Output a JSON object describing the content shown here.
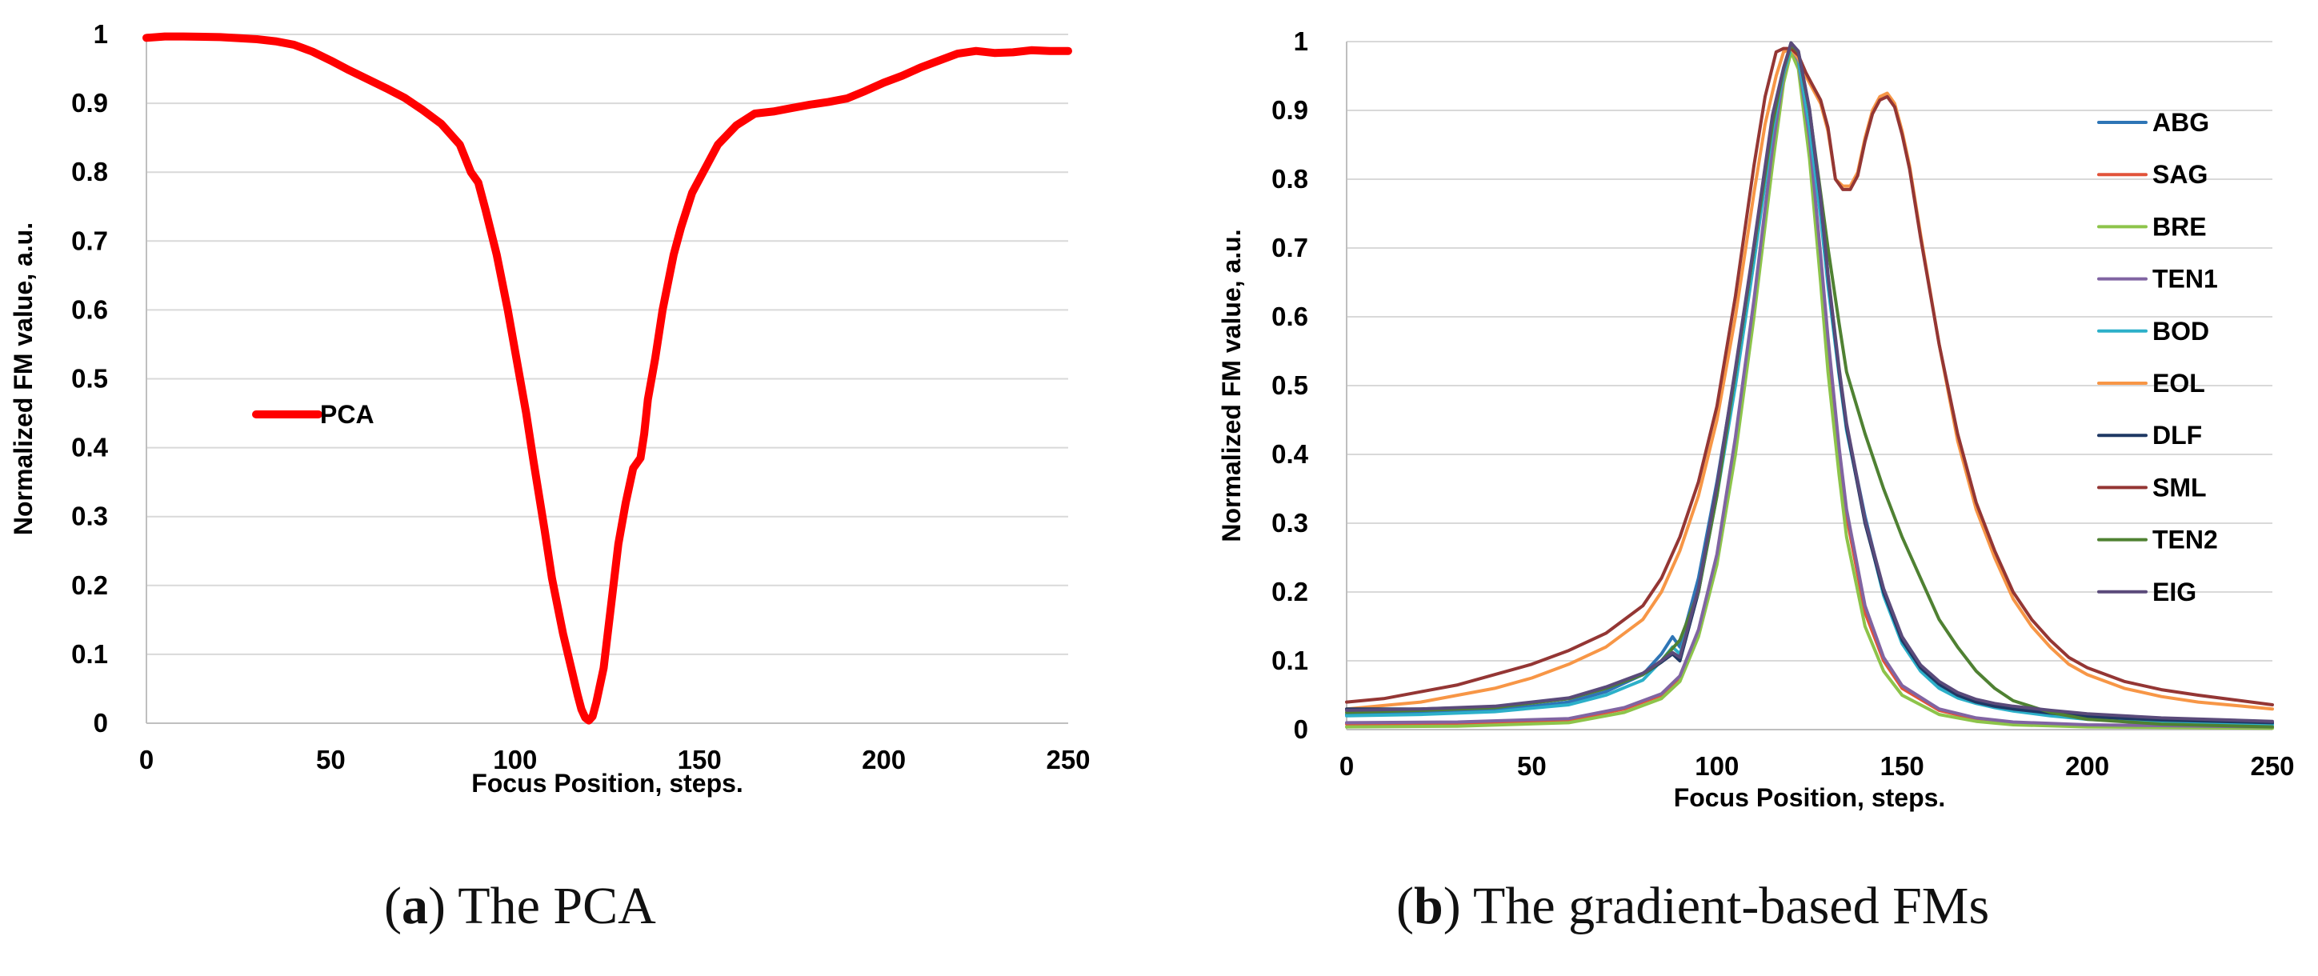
{
  "captions": [
    {
      "open": "(",
      "letter": "a",
      "close": ")",
      "text": "The PCA"
    },
    {
      "open": "(",
      "letter": "b",
      "close": ")",
      "text": "The gradient-based FMs"
    }
  ],
  "chart_data": [
    {
      "type": "line",
      "title": "",
      "xlabel": "Focus Position, steps.",
      "ylabel": "Normalized FM value, a.u.",
      "xlim": [
        0,
        250
      ],
      "ylim": [
        0,
        1
      ],
      "xticks": [
        0,
        50,
        100,
        150,
        200,
        250
      ],
      "yticks": [
        0,
        0.1,
        0.2,
        0.3,
        0.4,
        0.5,
        0.6,
        0.7,
        0.8,
        0.9,
        1
      ],
      "ytick_labels": [
        "0",
        "0.1",
        "0.2",
        "0.3",
        "0.4",
        "0.5",
        "0.6",
        "0.7",
        "0.8",
        "0.9",
        "1"
      ],
      "grid": "horizontal",
      "legend": "center-left",
      "series": [
        {
          "name": "PCA",
          "color": "#ff0000",
          "x": [
            0,
            5,
            10,
            20,
            30,
            35,
            40,
            45,
            50,
            55,
            60,
            65,
            70,
            75,
            80,
            85,
            88,
            90,
            92,
            95,
            98,
            100,
            103,
            105,
            108,
            110,
            113,
            115,
            117,
            118,
            119,
            120,
            121,
            122,
            124,
            126,
            128,
            130,
            132,
            134,
            135,
            136,
            138,
            140,
            143,
            145,
            148,
            150,
            155,
            160,
            165,
            170,
            175,
            180,
            185,
            190,
            195,
            200,
            205,
            210,
            215,
            220,
            225,
            230,
            235,
            240,
            245,
            250
          ],
          "y": [
            0.995,
            0.997,
            0.997,
            0.996,
            0.993,
            0.99,
            0.985,
            0.975,
            0.962,
            0.948,
            0.935,
            0.922,
            0.908,
            0.89,
            0.87,
            0.84,
            0.8,
            0.785,
            0.745,
            0.68,
            0.6,
            0.54,
            0.45,
            0.38,
            0.28,
            0.21,
            0.13,
            0.085,
            0.04,
            0.02,
            0.008,
            0.004,
            0.01,
            0.03,
            0.08,
            0.17,
            0.26,
            0.32,
            0.37,
            0.385,
            0.42,
            0.47,
            0.53,
            0.6,
            0.68,
            0.72,
            0.77,
            0.79,
            0.84,
            0.868,
            0.885,
            0.888,
            0.893,
            0.898,
            0.902,
            0.907,
            0.918,
            0.93,
            0.94,
            0.952,
            0.962,
            0.972,
            0.976,
            0.973,
            0.974,
            0.977,
            0.976,
            0.976
          ]
        }
      ]
    },
    {
      "type": "line",
      "title": "",
      "xlabel": "Focus Position, steps.",
      "ylabel": "Normalized FM value, a.u.",
      "xlim": [
        0,
        250
      ],
      "ylim": [
        0,
        1
      ],
      "xticks": [
        0,
        50,
        100,
        150,
        200,
        250
      ],
      "yticks": [
        0,
        0.1,
        0.2,
        0.3,
        0.4,
        0.5,
        0.6,
        0.7,
        0.8,
        0.9,
        1
      ],
      "ytick_labels": [
        "0",
        "0.1",
        "0.2",
        "0.3",
        "0.4",
        "0.5",
        "0.6",
        "0.7",
        "0.8",
        "0.9",
        "1"
      ],
      "grid": "horizontal",
      "legend": "right",
      "series": [
        {
          "name": "ABG",
          "color": "#2e75b6",
          "x": [
            0,
            20,
            40,
            60,
            70,
            80,
            85,
            88,
            90,
            95,
            100,
            105,
            110,
            115,
            118,
            120,
            122,
            125,
            128,
            130,
            133,
            135,
            140,
            145,
            150,
            155,
            160,
            165,
            170,
            175,
            180,
            190,
            200,
            220,
            250
          ],
          "y": [
            0.022,
            0.024,
            0.028,
            0.04,
            0.055,
            0.08,
            0.11,
            0.135,
            0.12,
            0.22,
            0.36,
            0.52,
            0.7,
            0.88,
            0.96,
            0.995,
            0.98,
            0.88,
            0.75,
            0.65,
            0.52,
            0.44,
            0.31,
            0.2,
            0.13,
            0.09,
            0.065,
            0.05,
            0.042,
            0.036,
            0.03,
            0.022,
            0.017,
            0.012,
            0.008
          ]
        },
        {
          "name": "SAG",
          "color": "#e2533a",
          "x": [
            0,
            30,
            60,
            75,
            85,
            90,
            95,
            100,
            105,
            110,
            115,
            118,
            120,
            122,
            125,
            128,
            130,
            133,
            135,
            140,
            145,
            150,
            160,
            170,
            180,
            200,
            250
          ],
          "y": [
            0.008,
            0.009,
            0.014,
            0.03,
            0.05,
            0.075,
            0.14,
            0.25,
            0.42,
            0.62,
            0.84,
            0.95,
            0.99,
            0.97,
            0.85,
            0.68,
            0.56,
            0.4,
            0.31,
            0.17,
            0.1,
            0.06,
            0.028,
            0.015,
            0.01,
            0.006,
            0.004
          ]
        },
        {
          "name": "BRE",
          "color": "#8dc44a",
          "x": [
            0,
            30,
            60,
            75,
            85,
            90,
            95,
            100,
            105,
            110,
            115,
            118,
            120,
            122,
            125,
            128,
            130,
            133,
            135,
            140,
            145,
            150,
            160,
            170,
            180,
            200,
            250
          ],
          "y": [
            0.004,
            0.005,
            0.01,
            0.025,
            0.045,
            0.07,
            0.135,
            0.24,
            0.4,
            0.6,
            0.82,
            0.94,
            0.985,
            0.96,
            0.83,
            0.65,
            0.52,
            0.37,
            0.28,
            0.15,
            0.085,
            0.05,
            0.022,
            0.012,
            0.007,
            0.004,
            0.002
          ]
        },
        {
          "name": "TEN1",
          "color": "#8064a2",
          "x": [
            0,
            30,
            60,
            75,
            85,
            90,
            95,
            100,
            105,
            110,
            115,
            118,
            120,
            122,
            125,
            128,
            130,
            133,
            135,
            140,
            145,
            150,
            160,
            170,
            180,
            200,
            250
          ],
          "y": [
            0.01,
            0.011,
            0.016,
            0.032,
            0.052,
            0.078,
            0.145,
            0.255,
            0.425,
            0.625,
            0.845,
            0.952,
            0.992,
            0.972,
            0.86,
            0.69,
            0.57,
            0.41,
            0.32,
            0.18,
            0.105,
            0.064,
            0.03,
            0.017,
            0.011,
            0.007,
            0.004
          ]
        },
        {
          "name": "BOD",
          "color": "#2cb0c9",
          "x": [
            0,
            20,
            40,
            60,
            70,
            80,
            85,
            88,
            90,
            95,
            100,
            105,
            110,
            115,
            118,
            120,
            122,
            125,
            128,
            130,
            133,
            135,
            140,
            145,
            150,
            155,
            160,
            165,
            170,
            175,
            180,
            190,
            200,
            220,
            250
          ],
          "y": [
            0.02,
            0.022,
            0.026,
            0.036,
            0.05,
            0.072,
            0.1,
            0.12,
            0.11,
            0.2,
            0.34,
            0.5,
            0.68,
            0.87,
            0.955,
            0.99,
            0.975,
            0.875,
            0.745,
            0.645,
            0.515,
            0.435,
            0.305,
            0.195,
            0.125,
            0.085,
            0.06,
            0.046,
            0.038,
            0.032,
            0.027,
            0.02,
            0.015,
            0.01,
            0.007
          ]
        },
        {
          "name": "EOL",
          "color": "#f79646",
          "x": [
            0,
            10,
            20,
            30,
            40,
            50,
            60,
            70,
            80,
            85,
            90,
            95,
            100,
            105,
            110,
            113,
            116,
            118,
            120,
            122,
            124,
            126,
            128,
            130,
            132,
            134,
            136,
            138,
            140,
            142,
            144,
            146,
            148,
            150,
            152,
            155,
            160,
            165,
            170,
            175,
            180,
            185,
            190,
            195,
            200,
            210,
            220,
            230,
            240,
            250
          ],
          "y": [
            0.03,
            0.035,
            0.04,
            0.05,
            0.06,
            0.075,
            0.095,
            0.12,
            0.16,
            0.2,
            0.26,
            0.34,
            0.45,
            0.6,
            0.78,
            0.88,
            0.95,
            0.985,
            0.99,
            0.975,
            0.95,
            0.93,
            0.91,
            0.87,
            0.8,
            0.79,
            0.79,
            0.81,
            0.86,
            0.9,
            0.92,
            0.925,
            0.91,
            0.87,
            0.82,
            0.72,
            0.56,
            0.42,
            0.32,
            0.25,
            0.19,
            0.15,
            0.12,
            0.095,
            0.08,
            0.06,
            0.048,
            0.04,
            0.035,
            0.03
          ]
        },
        {
          "name": "DLF",
          "color": "#1f3864",
          "x": [
            0,
            20,
            40,
            60,
            70,
            80,
            85,
            88,
            90,
            95,
            100,
            105,
            110,
            115,
            118,
            120,
            122,
            125,
            128,
            130,
            133,
            135,
            140,
            145,
            150,
            155,
            160,
            165,
            170,
            175,
            180,
            190,
            200,
            220,
            250
          ],
          "y": [
            0.03,
            0.03,
            0.033,
            0.045,
            0.06,
            0.08,
            0.098,
            0.11,
            0.1,
            0.2,
            0.35,
            0.52,
            0.7,
            0.89,
            0.96,
            0.998,
            0.985,
            0.9,
            0.77,
            0.66,
            0.52,
            0.44,
            0.3,
            0.2,
            0.13,
            0.09,
            0.066,
            0.05,
            0.04,
            0.034,
            0.03,
            0.024,
            0.019,
            0.014,
            0.01
          ]
        },
        {
          "name": "SML",
          "color": "#943634",
          "x": [
            0,
            10,
            20,
            30,
            40,
            50,
            60,
            70,
            80,
            85,
            90,
            95,
            100,
            105,
            110,
            113,
            116,
            118,
            120,
            122,
            124,
            126,
            128,
            130,
            132,
            134,
            136,
            138,
            140,
            142,
            144,
            146,
            148,
            150,
            152,
            155,
            160,
            165,
            170,
            175,
            180,
            185,
            190,
            195,
            200,
            210,
            220,
            230,
            240,
            250
          ],
          "y": [
            0.04,
            0.045,
            0.055,
            0.065,
            0.08,
            0.095,
            0.115,
            0.14,
            0.18,
            0.22,
            0.28,
            0.36,
            0.47,
            0.63,
            0.82,
            0.92,
            0.985,
            0.99,
            0.99,
            0.98,
            0.955,
            0.935,
            0.915,
            0.875,
            0.8,
            0.785,
            0.785,
            0.805,
            0.855,
            0.895,
            0.915,
            0.92,
            0.905,
            0.865,
            0.815,
            0.715,
            0.56,
            0.43,
            0.33,
            0.26,
            0.2,
            0.16,
            0.13,
            0.105,
            0.09,
            0.07,
            0.058,
            0.05,
            0.043,
            0.036
          ]
        },
        {
          "name": "TEN2",
          "color": "#4f8132",
          "x": [
            0,
            20,
            40,
            60,
            70,
            80,
            85,
            90,
            95,
            100,
            105,
            110,
            115,
            118,
            120,
            122,
            125,
            128,
            130,
            133,
            135,
            140,
            145,
            150,
            155,
            160,
            165,
            170,
            175,
            180,
            190,
            200,
            220,
            250
          ],
          "y": [
            0.025,
            0.028,
            0.032,
            0.045,
            0.06,
            0.08,
            0.1,
            0.13,
            0.2,
            0.34,
            0.52,
            0.7,
            0.88,
            0.96,
            0.995,
            0.985,
            0.9,
            0.78,
            0.7,
            0.59,
            0.52,
            0.43,
            0.35,
            0.28,
            0.22,
            0.16,
            0.12,
            0.085,
            0.06,
            0.042,
            0.025,
            0.015,
            0.008,
            0.004
          ]
        },
        {
          "name": "EIG",
          "color": "#5a4a7a",
          "x": [
            0,
            20,
            40,
            60,
            70,
            80,
            85,
            88,
            90,
            95,
            100,
            105,
            110,
            115,
            118,
            120,
            122,
            125,
            128,
            130,
            133,
            135,
            140,
            145,
            150,
            155,
            160,
            165,
            170,
            175,
            180,
            190,
            200,
            220,
            250
          ],
          "y": [
            0.028,
            0.03,
            0.034,
            0.046,
            0.062,
            0.082,
            0.1,
            0.112,
            0.105,
            0.205,
            0.355,
            0.525,
            0.705,
            0.893,
            0.962,
            0.998,
            0.986,
            0.902,
            0.772,
            0.662,
            0.525,
            0.445,
            0.305,
            0.205,
            0.135,
            0.094,
            0.07,
            0.054,
            0.044,
            0.038,
            0.034,
            0.028,
            0.023,
            0.017,
            0.012
          ]
        }
      ]
    }
  ]
}
